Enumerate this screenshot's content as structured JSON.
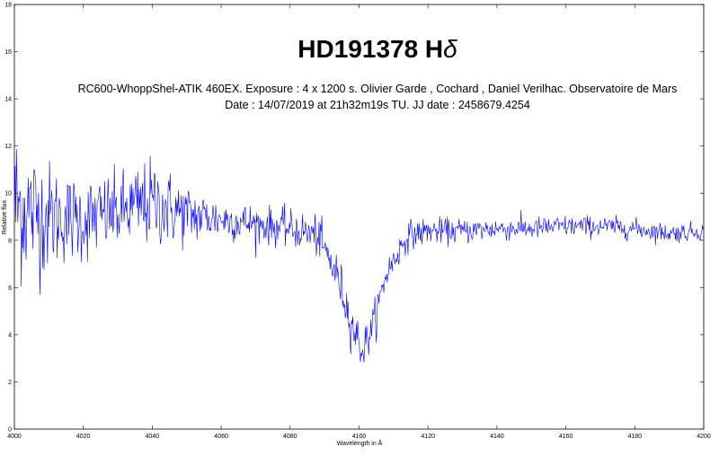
{
  "chart_data": {
    "type": "line",
    "title": "HD191378 Hδ",
    "subtitle_lines": [
      "RC600-WhoppShel-ATIK 460EX. Exposure : 4 x 1200 s. Olivier Garde , Cochard , Daniel Verilhac. Observatoire de Mars",
      "Date : 14/07/2019 at 21h32m19s TU. JJ date : 2458679.4254"
    ],
    "xlabel": "Wavelength in Å",
    "ylabel": "Relative flux",
    "xlim": [
      4000,
      4200
    ],
    "ylim": [
      0,
      18
    ],
    "x_ticks": [
      4000,
      4020,
      4040,
      4060,
      4080,
      4100,
      4120,
      4140,
      4160,
      4180,
      4200
    ],
    "y_ticks": [
      0,
      2,
      4,
      6,
      8,
      10,
      12,
      14,
      16,
      18
    ],
    "grid": false,
    "line_color": "#0000ff",
    "series": [
      {
        "x_start": 4000,
        "x_step": 0.2,
        "continuum_x": [
          4000,
          4010,
          4020,
          4030,
          4040,
          4050,
          4060,
          4070,
          4080,
          4088,
          4094,
          4098,
          4101,
          4104,
          4108,
          4114,
          4120,
          4130,
          4140,
          4150,
          4160,
          4170,
          4180,
          4190,
          4200
        ],
        "continuum_y": [
          9.5,
          9.0,
          8.9,
          9.2,
          9.6,
          9.1,
          8.9,
          8.7,
          8.5,
          8.2,
          6.4,
          4.4,
          3.3,
          4.4,
          6.6,
          8.2,
          8.4,
          8.4,
          8.5,
          8.5,
          8.6,
          8.6,
          8.5,
          8.3,
          8.4
        ],
        "noise_x": [
          4000,
          4005,
          4015,
          4030,
          4040,
          4050,
          4060,
          4080,
          4098,
          4104,
          4120,
          4140,
          4200
        ],
        "noise_amp": [
          3.2,
          2.6,
          1.7,
          1.5,
          1.7,
          1.2,
          0.8,
          0.7,
          0.9,
          0.7,
          0.5,
          0.45,
          0.35
        ]
      }
    ]
  }
}
